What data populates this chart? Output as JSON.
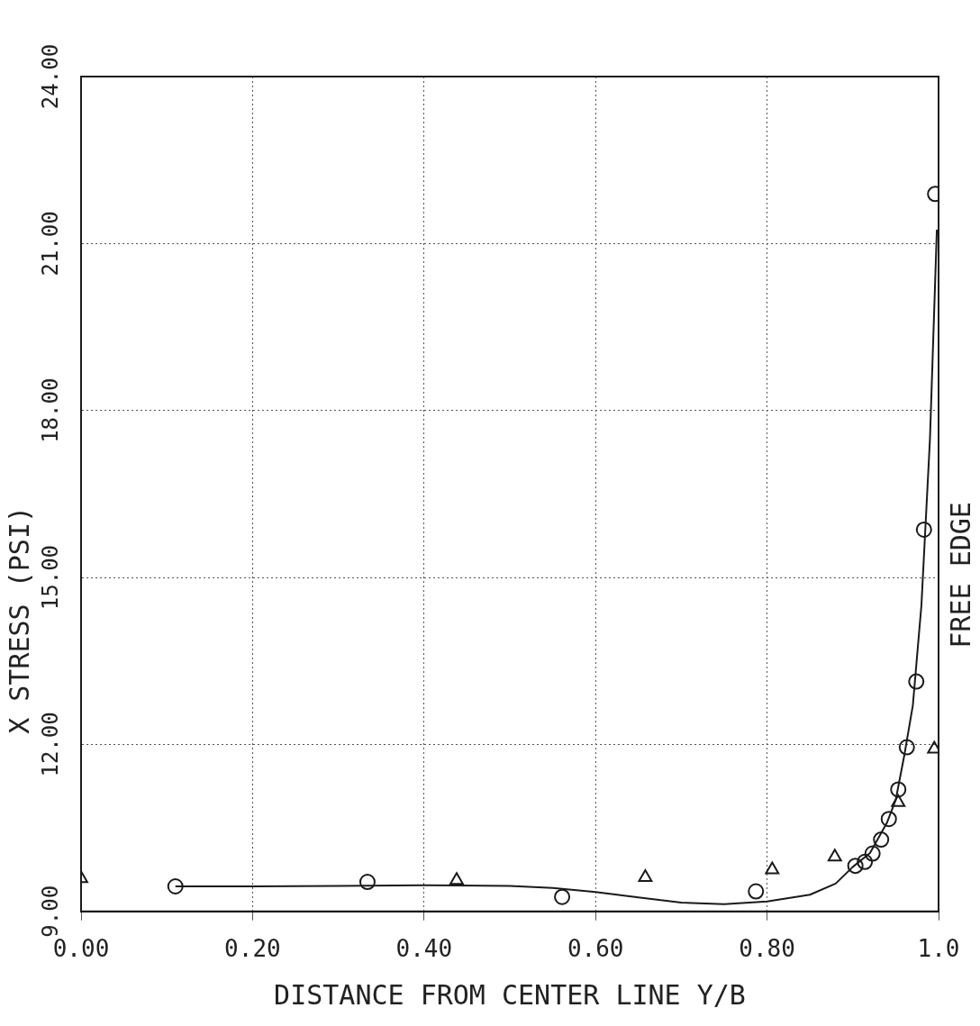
{
  "chart_data": {
    "type": "scatter",
    "xlabel": "DISTANCE FROM CENTER LINE Y/B",
    "ylabel": "X STRESS (PSI)",
    "xlim": [
      0,
      1
    ],
    "xticks": [
      {
        "value": 0,
        "label": "0.00"
      },
      {
        "value": 0.2,
        "label": "0.20"
      },
      {
        "value": 0.4,
        "label": "0.40"
      },
      {
        "value": 0.6,
        "label": "0.60"
      },
      {
        "value": 0.8,
        "label": "0.80"
      },
      {
        "value": 1,
        "label": "1.0"
      }
    ],
    "ylim": [
      9,
      24
    ],
    "yticks": [
      {
        "value": 9,
        "label": "9.00"
      },
      {
        "value": 12,
        "label": "12.00"
      },
      {
        "value": 15,
        "label": "15.00"
      },
      {
        "value": 18,
        "label": "18.00"
      },
      {
        "value": 21,
        "label": "21.00"
      },
      {
        "value": 24,
        "label": "24.00"
      }
    ],
    "grid": true,
    "legend": false,
    "annotations": [
      "FREE EDGE"
    ],
    "series": [
      {
        "type": "line",
        "color": "#1a1a1a",
        "marker": "none",
        "line_style": "solid",
        "x": [
          0.11,
          0.2,
          0.3,
          0.4,
          0.5,
          0.55,
          0.6,
          0.65,
          0.7,
          0.75,
          0.8,
          0.85,
          0.88,
          0.9,
          0.92,
          0.94,
          0.95,
          0.96,
          0.97,
          0.98,
          0.99,
          0.998
        ],
        "values": [
          9.45,
          9.45,
          9.46,
          9.47,
          9.46,
          9.42,
          9.35,
          9.25,
          9.16,
          9.13,
          9.18,
          9.3,
          9.5,
          9.8,
          10.05,
          10.6,
          11.0,
          11.8,
          12.7,
          14.5,
          17.5,
          21.25
        ]
      },
      {
        "color": "#1a1a1a",
        "marker": "circle",
        "x": [
          0.11,
          0.334,
          0.561,
          0.787,
          0.903,
          0.914,
          0.923,
          0.933,
          0.942,
          0.953,
          0.963,
          0.974,
          0.983,
          0.996
        ],
        "values": [
          9.45,
          9.53,
          9.26,
          9.36,
          9.82,
          9.89,
          10.04,
          10.29,
          10.66,
          11.19,
          11.95,
          13.13,
          15.86,
          21.89
        ]
      },
      {
        "color": "#1a1a1a",
        "marker": "triangle",
        "x": [
          0,
          0.438,
          0.658,
          0.806,
          0.879,
          0.953,
          0.995
        ],
        "values": [
          9.59,
          9.56,
          9.61,
          9.75,
          9.98,
          10.96,
          11.92
        ]
      }
    ]
  }
}
